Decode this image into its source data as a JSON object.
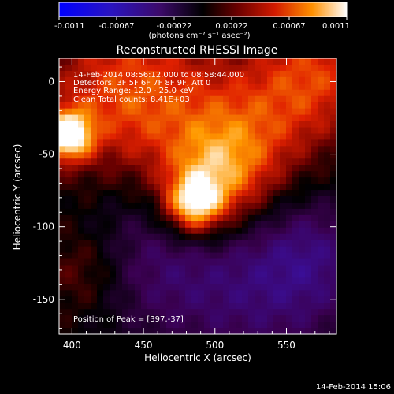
{
  "chart_data": {
    "type": "heatmap",
    "title": "Reconstructed RHESSI Image",
    "xlabel": "Heliocentric X (arcsec)",
    "ylabel": "Heliocentric Y (arcsec)",
    "xlim": [
      391,
      585
    ],
    "ylim": [
      -174,
      16
    ],
    "x_ticks": [
      400,
      450,
      500,
      550
    ],
    "y_ticks": [
      0,
      -50,
      -100,
      -150
    ],
    "colorbar": {
      "ticks": [
        "-0.0011",
        "-0.00067",
        "-0.00022",
        "0.00022",
        "0.00067",
        "0.0011"
      ],
      "unit_label": "(photons cm⁻² s⁻¹ asec⁻²)",
      "range": [
        -0.0011,
        0.0011
      ],
      "colormap": [
        "#0000ff",
        "#3a10a0",
        "#3a0050",
        "#000000",
        "#6a0000",
        "#e02000",
        "#ff9a00",
        "#ffffff"
      ]
    },
    "info_lines": [
      "14-Feb-2014 08:56:12.000 to 08:58:44.000",
      "Detectors: 3F 5F 6F 7F 8F 9F, Att 0",
      "Energy Range: 12.0 - 25.0 keV",
      "Clean     Total counts: 8.41E+03"
    ],
    "peak_label": "Position of Peak = [397,-37]",
    "peak": [
      397,
      -37
    ],
    "sources": [
      {
        "x": 397,
        "y": -37,
        "value": 0.0011,
        "width": 12
      },
      {
        "x": 485,
        "y": -85,
        "value": 0.00085,
        "width": 14
      },
      {
        "x": 500,
        "y": -70,
        "value": 0.0006,
        "width": 26
      },
      {
        "x": 440,
        "y": -10,
        "value": 0.0006,
        "width": 40
      },
      {
        "x": 520,
        "y": -40,
        "value": 0.0005,
        "width": 35
      },
      {
        "x": 570,
        "y": 5,
        "value": 0.0005,
        "width": 30
      },
      {
        "x": 410,
        "y": -130,
        "value": 0.0003,
        "width": 22
      },
      {
        "x": 450,
        "y": -120,
        "value": -0.00035,
        "width": 40
      },
      {
        "x": 530,
        "y": -140,
        "value": -0.00045,
        "width": 50
      },
      {
        "x": 570,
        "y": -120,
        "value": -0.0003,
        "width": 30
      }
    ]
  },
  "footer": {
    "timestamp": "14-Feb-2014 15:06"
  }
}
